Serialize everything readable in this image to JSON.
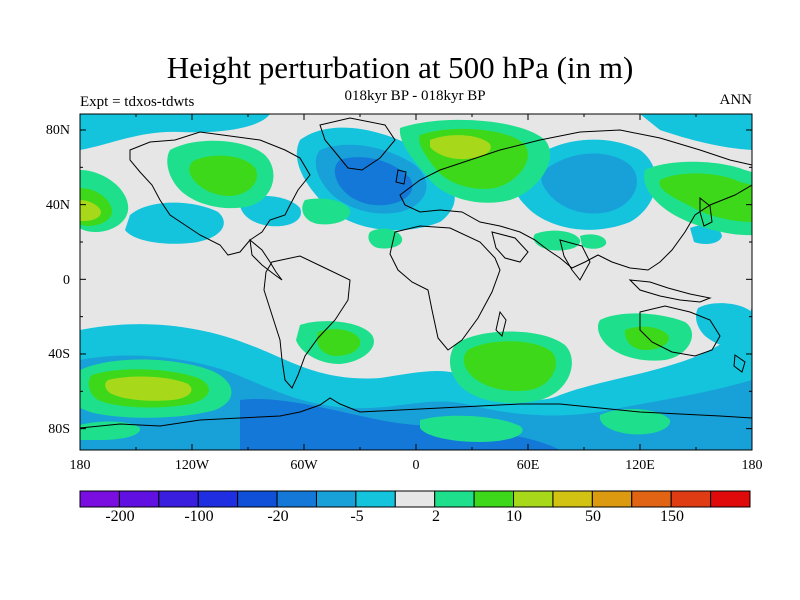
{
  "title": "Height perturbation at 500 hPa (in m)",
  "subtitle": "018kyr BP - 018kyr BP",
  "expt_label": "Expt = tdxos-tdwts",
  "season": "ANN",
  "map": {
    "lat_labels": [
      "80N",
      "40N",
      "0",
      "40S",
      "80S"
    ],
    "lon_labels": [
      "180",
      "120W",
      "60W",
      "0",
      "60E",
      "120E",
      "180"
    ],
    "background_color": "#e6e6e6",
    "coast_color": "#000000"
  },
  "colorbar": {
    "colors": [
      "#7a0ee0",
      "#6010e0",
      "#3a1ee0",
      "#1e2ee0",
      "#1050d8",
      "#1478d8",
      "#18a0d8",
      "#14c4dc",
      "#e6e6e6",
      "#1ee08c",
      "#3ed81a",
      "#a8d81a",
      "#d2c212",
      "#dc9a10",
      "#e06414",
      "#e03c14",
      "#e00a0a"
    ],
    "tick_labels": [
      "-200",
      "-100",
      "-20",
      "-5",
      "2",
      "10",
      "50",
      "150"
    ]
  },
  "palette": {
    "neg_light": "#14c4dc",
    "neg_mid": "#18a0d8",
    "neg_strong": "#1478d8",
    "pos_light": "#1ee08c",
    "pos_mid": "#3ed81a",
    "pos_strong": "#a8d81a",
    "pos_peak": "#d2c212"
  }
}
